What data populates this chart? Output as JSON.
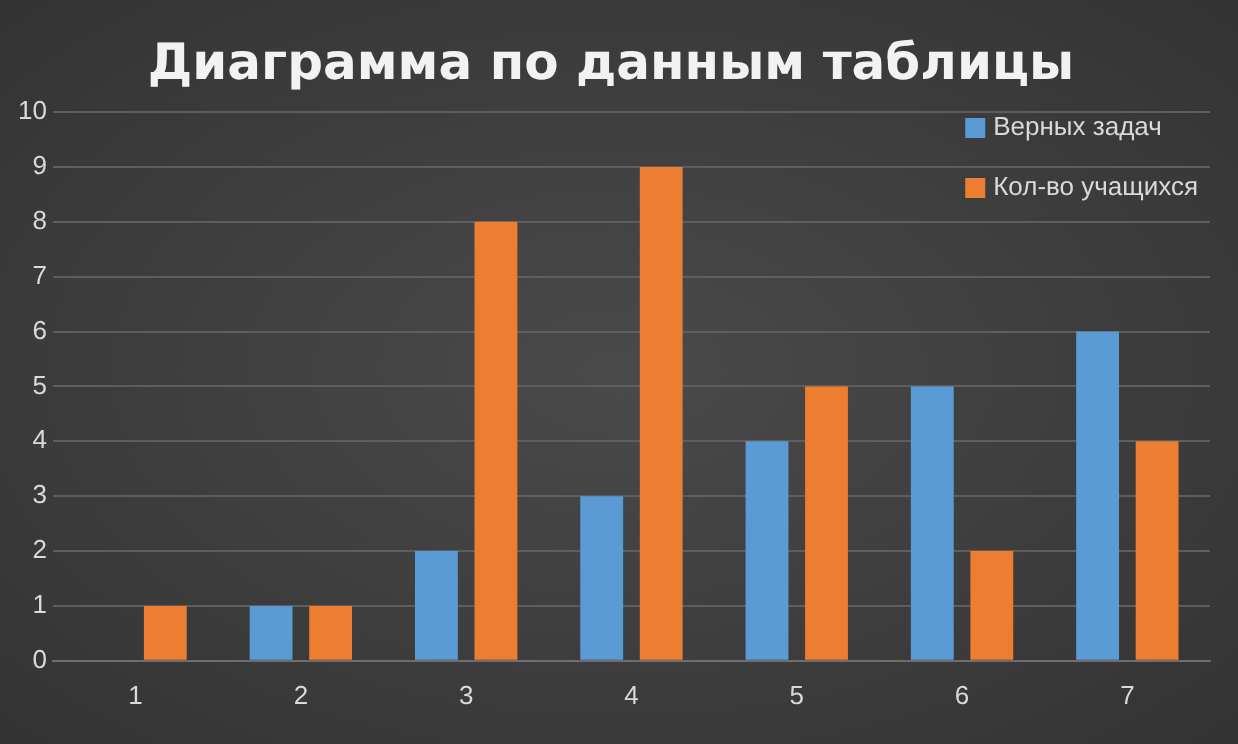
{
  "chart_data": {
    "type": "bar",
    "title": "Диаграмма по данным таблицы",
    "categories": [
      "1",
      "2",
      "3",
      "4",
      "5",
      "6",
      "7"
    ],
    "series": [
      {
        "name": "Верных задач",
        "color": "#5b9bd5",
        "values": [
          0,
          1,
          2,
          3,
          4,
          5,
          6
        ]
      },
      {
        "name": "Кол-во учащихся",
        "color": "#ed7d31",
        "values": [
          1,
          1,
          8,
          9,
          5,
          2,
          4
        ]
      }
    ],
    "ylim": [
      0,
      10
    ],
    "yticks": [
      0,
      1,
      2,
      3,
      4,
      5,
      6,
      7,
      8,
      9,
      10
    ],
    "grid": "y",
    "legend": "top right"
  }
}
